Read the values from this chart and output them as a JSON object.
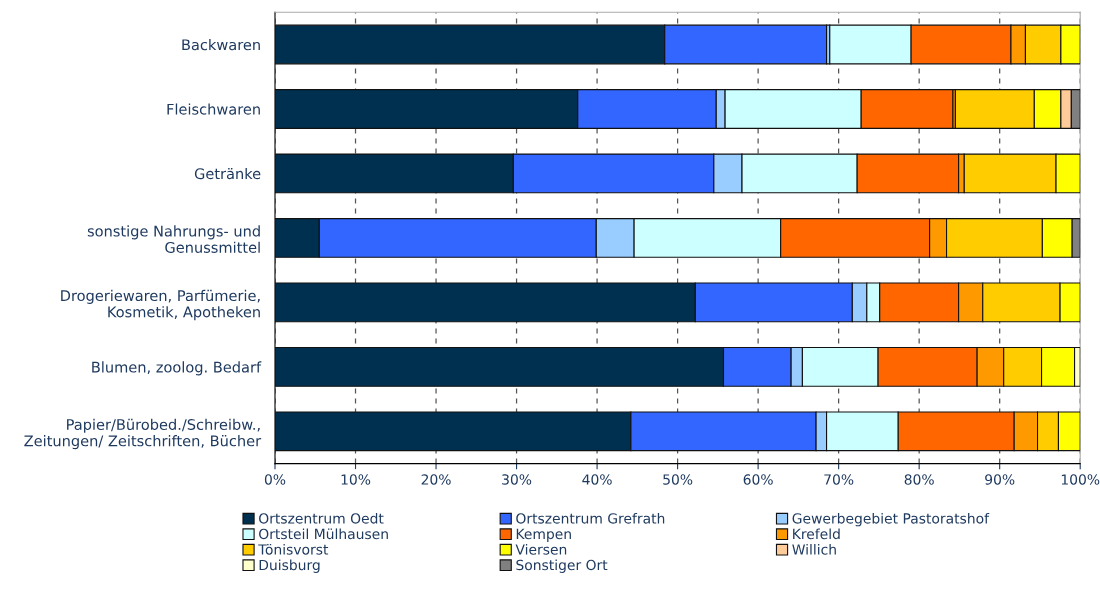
{
  "chart_data": {
    "type": "bar",
    "orientation": "horizontal",
    "stacked": true,
    "categories": [
      "Backwaren",
      "Fleischwaren",
      "Getränke",
      "sonstige Nahrungs- und\nGenussmittel",
      "Drogeriewaren, Parfümerie,\nKosmetik, Apotheken",
      "Blumen, zoolog. Bedarf",
      "Papier/Bürobed./Schreibw.,\nZeitungen/ Zeitschriften, Bücher"
    ],
    "series": [
      {
        "name": "Ortszentrum Oedt",
        "color": "#003050",
        "values": [
          48.4,
          37.6,
          29.6,
          5.5,
          52.2,
          55.7,
          44.2
        ]
      },
      {
        "name": "Ortszentrum Grefrath",
        "color": "#3366ff",
        "values": [
          20.1,
          17.2,
          24.9,
          34.4,
          19.5,
          8.4,
          23.0
        ]
      },
      {
        "name": "Gewerbegebiet Pastoratshof",
        "color": "#99ccff",
        "values": [
          0.4,
          1.1,
          3.5,
          4.7,
          1.8,
          1.4,
          1.3
        ]
      },
      {
        "name": "Ortsteil Mülhausen",
        "color": "#ccffff",
        "values": [
          10.1,
          16.9,
          14.3,
          18.2,
          1.6,
          9.4,
          8.9
        ]
      },
      {
        "name": "Kempen",
        "color": "#ff6600",
        "values": [
          12.4,
          11.4,
          12.6,
          18.5,
          9.8,
          12.3,
          14.4
        ]
      },
      {
        "name": "Krefeld",
        "color": "#ff9900",
        "values": [
          1.8,
          0.3,
          0.7,
          2.1,
          3.0,
          3.3,
          2.9
        ]
      },
      {
        "name": "Tönisvorst",
        "color": "#ffcc00",
        "values": [
          4.4,
          9.8,
          11.4,
          11.9,
          9.6,
          4.7,
          2.6
        ]
      },
      {
        "name": "Viersen",
        "color": "#ffff00",
        "values": [
          2.4,
          3.3,
          3.0,
          3.7,
          2.5,
          4.1,
          2.7
        ]
      },
      {
        "name": "Willich",
        "color": "#ffcc99",
        "values": [
          null,
          1.3,
          null,
          null,
          null,
          null,
          null
        ]
      },
      {
        "name": "Duisburg",
        "color": "#ffffcc",
        "values": [
          null,
          null,
          null,
          null,
          null,
          0.7,
          null
        ]
      },
      {
        "name": "Sonstiger Ort",
        "color": "#808080",
        "values": [
          null,
          1.1,
          null,
          1.0,
          null,
          null,
          null
        ]
      }
    ],
    "xlim": [
      0,
      100
    ],
    "xticks": [
      {
        "value": 0,
        "label": "0%"
      },
      {
        "value": 10,
        "label": "10%"
      },
      {
        "value": 20,
        "label": "20%"
      },
      {
        "value": 30,
        "label": "30%"
      },
      {
        "value": 40,
        "label": "40%"
      },
      {
        "value": 50,
        "label": "50%"
      },
      {
        "value": 60,
        "label": "60%"
      },
      {
        "value": 70,
        "label": "70%"
      },
      {
        "value": 80,
        "label": "80%"
      },
      {
        "value": 90,
        "label": "90%"
      },
      {
        "value": 100,
        "label": "100%"
      }
    ],
    "grid": "x",
    "legend": "bottom"
  }
}
